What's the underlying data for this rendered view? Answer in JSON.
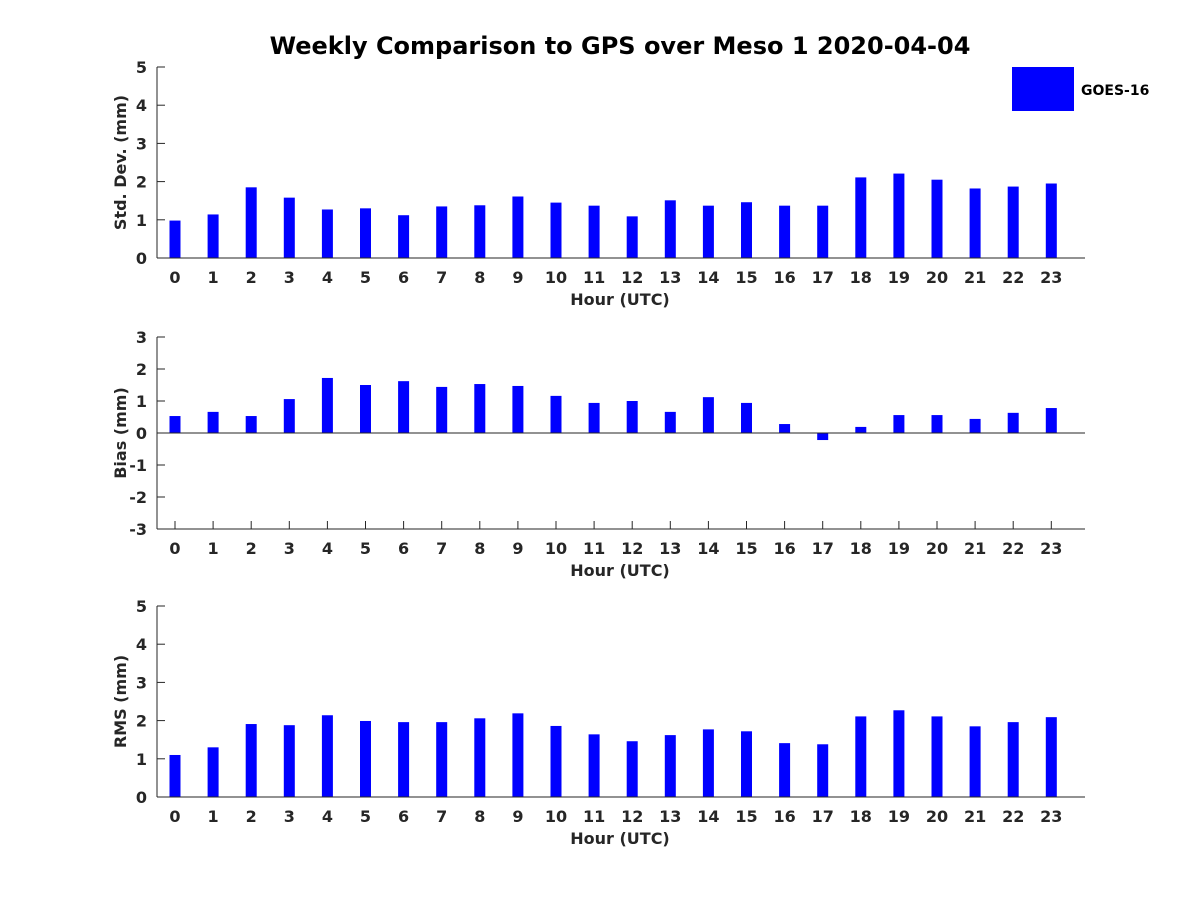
{
  "figure": {
    "title": "Weekly Comparison to GPS over Meso 1 2020-04-04",
    "bar_color": "#0000ff"
  },
  "legend": {
    "label": "GOES-16",
    "placement": "top-right"
  },
  "chart_data": [
    {
      "type": "bar",
      "name": "std-dev",
      "xlabel": "Hour (UTC)",
      "ylabel": "Std. Dev. (mm)",
      "ylim": [
        0,
        5
      ],
      "yticks": [
        "0",
        "1",
        "2",
        "3",
        "4",
        "5"
      ],
      "categories": [
        "0",
        "1",
        "2",
        "3",
        "4",
        "5",
        "6",
        "7",
        "8",
        "9",
        "10",
        "11",
        "12",
        "13",
        "14",
        "15",
        "16",
        "17",
        "18",
        "19",
        "20",
        "21",
        "22",
        "23"
      ],
      "series": [
        {
          "name": "GOES-16",
          "values": [
            0.98,
            1.14,
            1.85,
            1.58,
            1.27,
            1.3,
            1.12,
            1.35,
            1.38,
            1.61,
            1.45,
            1.37,
            1.09,
            1.51,
            1.37,
            1.46,
            1.37,
            1.37,
            2.11,
            2.21,
            2.05,
            1.82,
            1.87,
            1.95
          ]
        }
      ]
    },
    {
      "type": "bar",
      "name": "bias",
      "xlabel": "Hour (UTC)",
      "ylabel": "Bias (mm)",
      "ylim": [
        -3,
        3
      ],
      "yticks": [
        "-3",
        "-2",
        "-1",
        "0",
        "1",
        "2",
        "3"
      ],
      "categories": [
        "0",
        "1",
        "2",
        "3",
        "4",
        "5",
        "6",
        "7",
        "8",
        "9",
        "10",
        "11",
        "12",
        "13",
        "14",
        "15",
        "16",
        "17",
        "18",
        "19",
        "20",
        "21",
        "22",
        "23"
      ],
      "series": [
        {
          "name": "GOES-16",
          "values": [
            0.53,
            0.66,
            0.53,
            1.06,
            1.72,
            1.5,
            1.62,
            1.44,
            1.53,
            1.47,
            1.16,
            0.94,
            1.0,
            0.66,
            1.12,
            0.94,
            0.28,
            -0.22,
            0.19,
            0.56,
            0.56,
            0.44,
            0.63,
            0.78
          ]
        }
      ]
    },
    {
      "type": "bar",
      "name": "rms",
      "xlabel": "Hour (UTC)",
      "ylabel": "RMS (mm)",
      "ylim": [
        0,
        5
      ],
      "yticks": [
        "0",
        "1",
        "2",
        "3",
        "4",
        "5"
      ],
      "categories": [
        "0",
        "1",
        "2",
        "3",
        "4",
        "5",
        "6",
        "7",
        "8",
        "9",
        "10",
        "11",
        "12",
        "13",
        "14",
        "15",
        "16",
        "17",
        "18",
        "19",
        "20",
        "21",
        "22",
        "23"
      ],
      "series": [
        {
          "name": "GOES-16",
          "values": [
            1.1,
            1.3,
            1.91,
            1.88,
            2.14,
            1.99,
            1.96,
            1.96,
            2.06,
            2.19,
            1.86,
            1.64,
            1.46,
            1.62,
            1.77,
            1.72,
            1.41,
            1.38,
            2.11,
            2.27,
            2.11,
            1.85,
            1.96,
            2.09
          ]
        }
      ]
    }
  ]
}
